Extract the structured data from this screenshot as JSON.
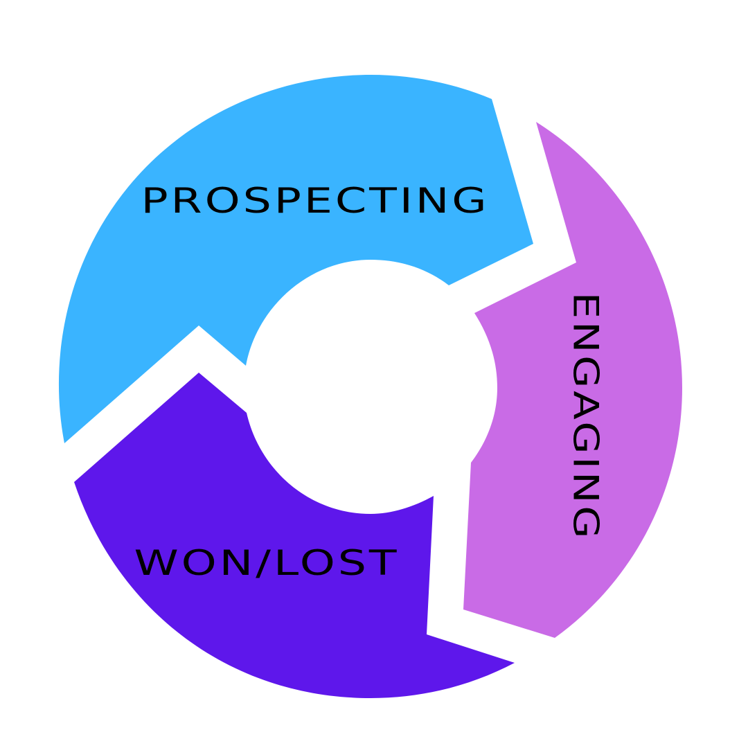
{
  "diagram": {
    "type": "cycle",
    "stages": [
      {
        "id": "prospecting",
        "label": "PROSPECTING",
        "color": "#3AB4FF"
      },
      {
        "id": "engaging",
        "label": "ENGAGING",
        "color": "#C96BE6"
      },
      {
        "id": "won_lost",
        "label": "WON/LOST",
        "color": "#5E17EB"
      }
    ],
    "background_color": "#FFFFFF",
    "text_color": "#000000"
  }
}
